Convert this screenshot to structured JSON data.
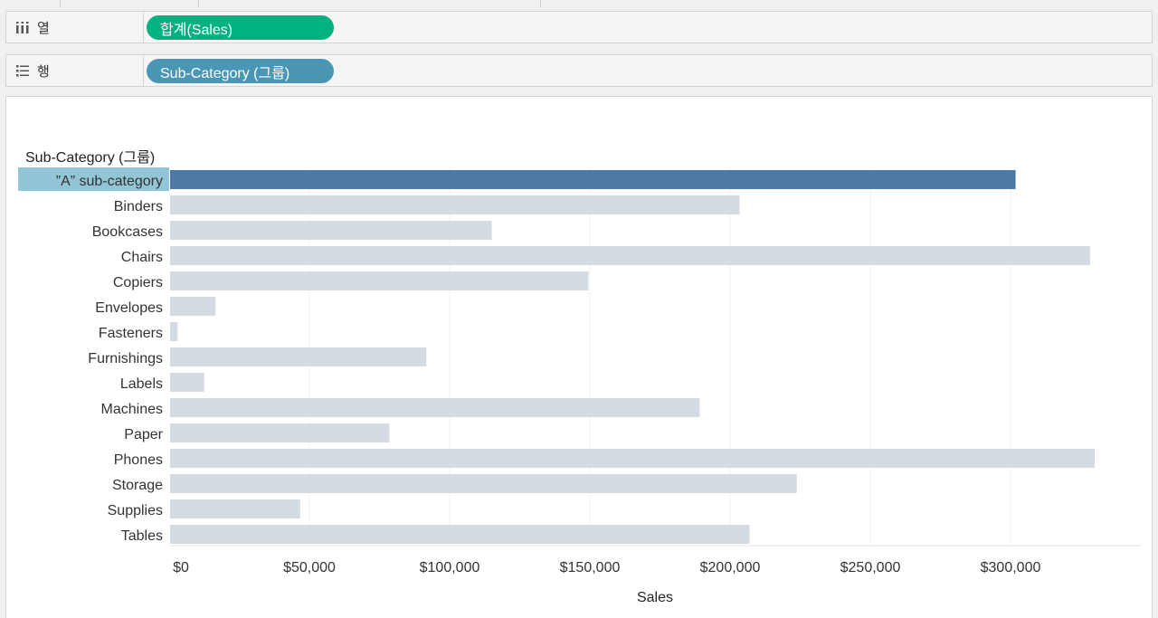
{
  "shelves": {
    "columns": {
      "label": "열",
      "pill": "합계(Sales)",
      "icon": "columns-icon"
    },
    "rows": {
      "label": "행",
      "pill": "Sub-Category (그룹)",
      "icon": "rows-icon"
    }
  },
  "colors": {
    "highlight_bar": "#4e79a7",
    "muted_bar": "#d5dbe3",
    "highlight_label_bg": "#92c5d6",
    "columns_pill": "#01b281",
    "rows_pill": "#4a97b5"
  },
  "chart_data": {
    "type": "bar",
    "orientation": "horizontal",
    "row_header": "Sub-Category (그룹)",
    "categories": [
      "”A” sub-category",
      "Binders",
      "Bookcases",
      "Chairs",
      "Copiers",
      "Envelopes",
      "Fasteners",
      "Furnishings",
      "Labels",
      "Machines",
      "Paper",
      "Phones",
      "Storage",
      "Supplies",
      "Tables"
    ],
    "values": [
      301800,
      203400,
      115000,
      328400,
      149500,
      16500,
      3000,
      91700,
      12500,
      189200,
      78500,
      330000,
      223800,
      46700,
      206900
    ],
    "highlighted": [
      "”A” sub-category"
    ],
    "xlabel": "Sales",
    "xlim": [
      0,
      345000
    ],
    "ticks": [
      0,
      50000,
      100000,
      150000,
      200000,
      250000,
      300000
    ],
    "tick_labels": [
      "$0",
      "$50,000",
      "$100,000",
      "$150,000",
      "$200,000",
      "$250,000",
      "$300,000"
    ],
    "grid": true
  }
}
